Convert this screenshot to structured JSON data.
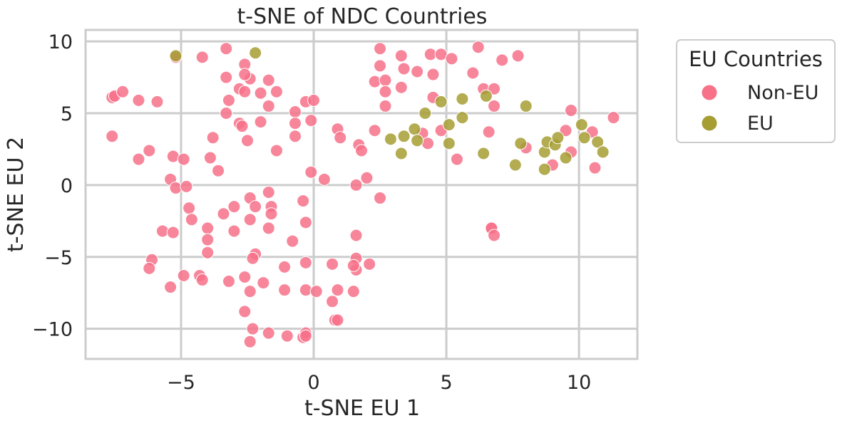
{
  "chart_data": {
    "type": "scatter",
    "title": "t-SNE of NDC Countries",
    "xlabel": "t-SNE EU 1",
    "ylabel": "t-SNE EU 2",
    "xlim": [
      -8.6,
      12.2
    ],
    "ylim": [
      -12.1,
      10.8
    ],
    "xticks": [
      -5,
      0,
      5,
      10
    ],
    "yticks": [
      -10,
      -5,
      0,
      5,
      10
    ],
    "xtick_labels": [
      "−5",
      "0",
      "5",
      "10"
    ],
    "ytick_labels": [
      "−10",
      "−5",
      "0",
      "5",
      "10"
    ],
    "grid": true,
    "legend": {
      "title": "EU Countries",
      "placement": "outside-right"
    },
    "series": [
      {
        "name": "Non-EU",
        "color": "#f77189",
        "points": [
          [
            -5.2,
            8.9
          ],
          [
            -4.2,
            8.9
          ],
          [
            -3.3,
            9.5
          ],
          [
            -2.6,
            8.4
          ],
          [
            -2.4,
            7.4
          ],
          [
            -3.3,
            7.5
          ],
          [
            -2.6,
            7.7
          ],
          [
            -1.7,
            7.3
          ],
          [
            -1.4,
            6.5
          ],
          [
            -2.0,
            6.4
          ],
          [
            -2.8,
            6.7
          ],
          [
            -2.6,
            6.5
          ],
          [
            -3.2,
            5.9
          ],
          [
            -3.3,
            5.0
          ],
          [
            -1.7,
            5.5
          ],
          [
            -2.8,
            4.3
          ],
          [
            -2.7,
            4.1
          ],
          [
            -2.0,
            4.4
          ],
          [
            -2.5,
            3.1
          ],
          [
            -1.4,
            2.4
          ],
          [
            -0.7,
            5.1
          ],
          [
            -0.7,
            4.3
          ],
          [
            -0.3,
            5.8
          ],
          [
            0.0,
            5.9
          ],
          [
            -0.1,
            4.5
          ],
          [
            -0.7,
            3.4
          ],
          [
            -7.6,
            6.1
          ],
          [
            -7.5,
            6.2
          ],
          [
            -7.2,
            6.5
          ],
          [
            -6.6,
            5.9
          ],
          [
            -5.9,
            5.8
          ],
          [
            -7.6,
            3.4
          ],
          [
            -6.2,
            2.4
          ],
          [
            -6.6,
            1.8
          ],
          [
            -5.3,
            2.0
          ],
          [
            -4.9,
            1.8
          ],
          [
            -3.8,
            3.3
          ],
          [
            -3.9,
            1.9
          ],
          [
            -3.6,
            1.0
          ],
          [
            -5.4,
            0.4
          ],
          [
            -5.2,
            -0.2
          ],
          [
            -4.8,
            -0.1
          ],
          [
            -4.7,
            -1.6
          ],
          [
            -4.6,
            -2.4
          ],
          [
            -5.7,
            -3.2
          ],
          [
            -5.3,
            -3.3
          ],
          [
            -4.0,
            -3.0
          ],
          [
            -4.0,
            -3.8
          ],
          [
            -4.0,
            -4.7
          ],
          [
            -3.4,
            -2.0
          ],
          [
            -3.0,
            -1.5
          ],
          [
            -3.0,
            -3.2
          ],
          [
            -2.4,
            -0.9
          ],
          [
            -2.2,
            -1.5
          ],
          [
            -2.4,
            -2.4
          ],
          [
            -1.7,
            -0.5
          ],
          [
            -1.6,
            -1.5
          ],
          [
            -1.6,
            -2.0
          ],
          [
            -1.7,
            -3.0
          ],
          [
            -0.8,
            -3.9
          ],
          [
            -0.4,
            -1.1
          ],
          [
            -0.3,
            -2.6
          ],
          [
            -0.1,
            0.9
          ],
          [
            0.4,
            0.4
          ],
          [
            -6.1,
            -5.2
          ],
          [
            -6.2,
            -5.8
          ],
          [
            -4.9,
            -6.3
          ],
          [
            -4.3,
            -6.3
          ],
          [
            -4.2,
            -6.6
          ],
          [
            -5.4,
            -7.1
          ],
          [
            -3.2,
            -6.7
          ],
          [
            -2.2,
            -4.8
          ],
          [
            -2.3,
            -5.1
          ],
          [
            -2.6,
            -6.4
          ],
          [
            -2.4,
            -7.4
          ],
          [
            -1.9,
            -6.8
          ],
          [
            -1.1,
            -5.7
          ],
          [
            -1.1,
            -7.3
          ],
          [
            -0.3,
            -5.4
          ],
          [
            -0.3,
            -7.3
          ],
          [
            0.1,
            -7.4
          ],
          [
            0.7,
            -5.5
          ],
          [
            0.7,
            -8.1
          ],
          [
            0.9,
            -7.3
          ],
          [
            1.5,
            -7.4
          ],
          [
            0.8,
            -9.4
          ],
          [
            0.9,
            -9.4
          ],
          [
            -2.6,
            -8.8
          ],
          [
            -2.3,
            -10.0
          ],
          [
            -1.7,
            -10.3
          ],
          [
            -1.0,
            -10.5
          ],
          [
            -0.4,
            -10.6
          ],
          [
            -0.3,
            -10.3
          ],
          [
            -0.3,
            -10.5
          ],
          [
            -2.4,
            -10.9
          ],
          [
            1.6,
            -5.1
          ],
          [
            1.6,
            -5.9
          ],
          [
            1.5,
            -5.6
          ],
          [
            2.1,
            -5.5
          ],
          [
            1.6,
            -3.5
          ],
          [
            1.6,
            0.0
          ],
          [
            2.0,
            0.5
          ],
          [
            2.5,
            -0.9
          ],
          [
            0.9,
            3.9
          ],
          [
            1.0,
            3.3
          ],
          [
            1.7,
            2.8
          ],
          [
            1.8,
            2.4
          ],
          [
            2.3,
            3.8
          ],
          [
            2.5,
            9.5
          ],
          [
            2.5,
            8.3
          ],
          [
            2.3,
            7.2
          ],
          [
            2.7,
            7.3
          ],
          [
            2.7,
            6.5
          ],
          [
            2.7,
            5.5
          ],
          [
            3.3,
            9.0
          ],
          [
            3.4,
            8.1
          ],
          [
            3.3,
            6.8
          ],
          [
            3.9,
            7.9
          ],
          [
            4.4,
            9.1
          ],
          [
            4.8,
            9.1
          ],
          [
            5.2,
            8.8
          ],
          [
            4.5,
            7.7
          ],
          [
            4.5,
            6.1
          ],
          [
            6.2,
            9.6
          ],
          [
            6.0,
            7.8
          ],
          [
            7.1,
            8.7
          ],
          [
            7.7,
            9.0
          ],
          [
            6.4,
            6.7
          ],
          [
            6.8,
            6.7
          ],
          [
            6.8,
            5.5
          ],
          [
            6.6,
            3.7
          ],
          [
            4.1,
            3.6
          ],
          [
            4.3,
            2.9
          ],
          [
            4.8,
            3.8
          ],
          [
            5.4,
            1.8
          ],
          [
            8.0,
            2.6
          ],
          [
            9.0,
            1.4
          ],
          [
            9.7,
            5.2
          ],
          [
            9.5,
            3.8
          ],
          [
            9.7,
            2.3
          ],
          [
            10.5,
            3.7
          ],
          [
            10.6,
            1.2
          ],
          [
            11.3,
            4.7
          ],
          [
            6.7,
            -3.0
          ],
          [
            6.7,
            -3.0
          ],
          [
            6.8,
            -3.5
          ]
        ]
      },
      {
        "name": "EU",
        "color": "#a69d33",
        "points": [
          [
            -5.2,
            9.0
          ],
          [
            -2.2,
            9.2
          ],
          [
            2.9,
            3.2
          ],
          [
            3.4,
            3.4
          ],
          [
            3.3,
            2.2
          ],
          [
            3.8,
            3.9
          ],
          [
            3.9,
            3.1
          ],
          [
            4.2,
            5.0
          ],
          [
            4.8,
            5.8
          ],
          [
            5.1,
            4.2
          ],
          [
            5.1,
            2.9
          ],
          [
            5.6,
            4.7
          ],
          [
            5.6,
            6.0
          ],
          [
            6.5,
            6.2
          ],
          [
            6.4,
            2.2
          ],
          [
            7.6,
            1.4
          ],
          [
            7.8,
            2.9
          ],
          [
            8.0,
            5.5
          ],
          [
            8.7,
            2.3
          ],
          [
            8.8,
            3.0
          ],
          [
            8.7,
            1.1
          ],
          [
            9.1,
            2.8
          ],
          [
            9.2,
            3.3
          ],
          [
            9.5,
            1.9
          ],
          [
            10.1,
            4.2
          ],
          [
            10.2,
            3.3
          ],
          [
            10.7,
            3.0
          ],
          [
            10.9,
            2.3
          ]
        ]
      }
    ]
  }
}
